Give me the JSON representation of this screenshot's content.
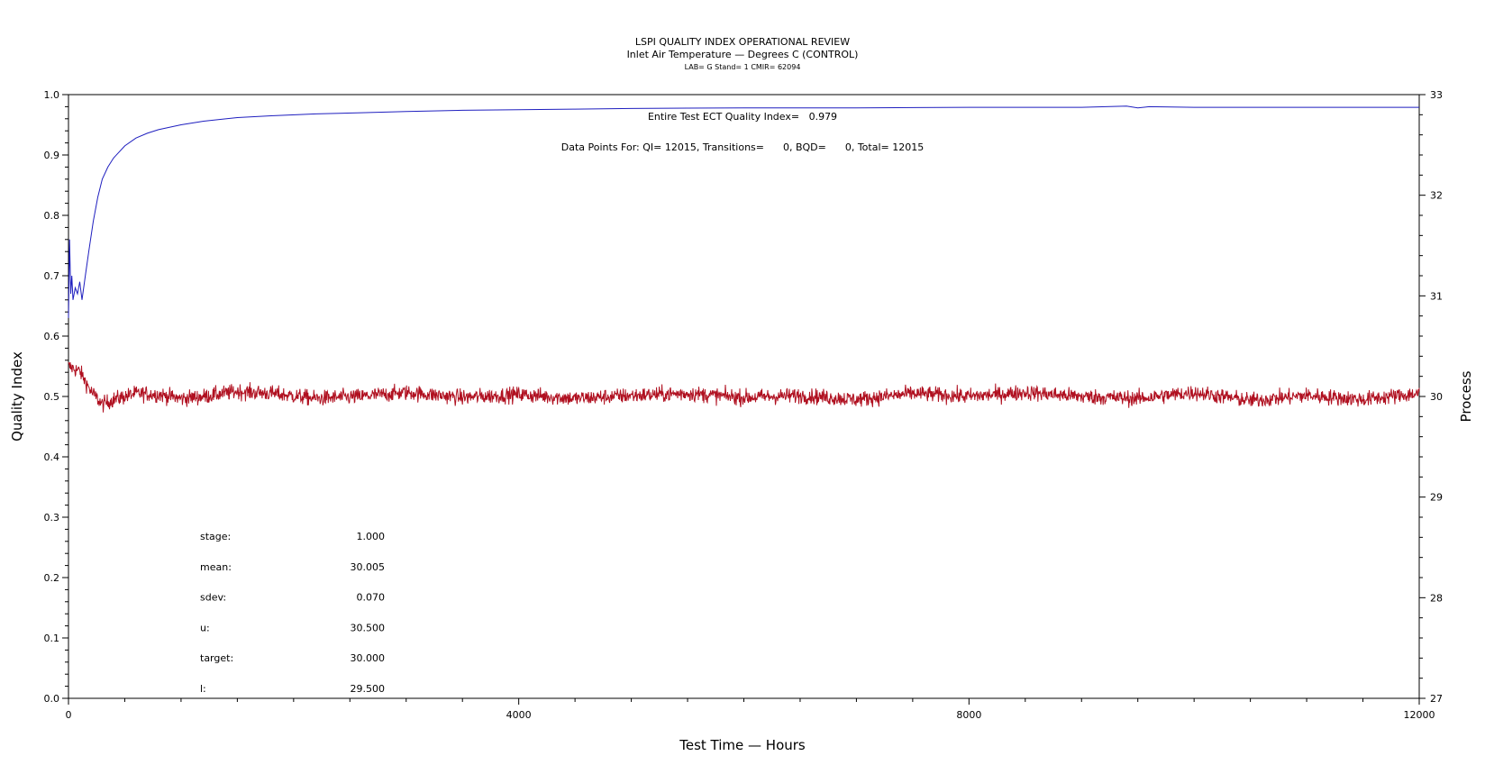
{
  "chart_data": {
    "type": "line",
    "title": "LSPI QUALITY INDEX OPERATIONAL REVIEW",
    "subtitle": "Inlet Air Temperature — Degrees C (CONTROL)",
    "subtitle2": "LAB= G Stand= 1 CMIR= 62094",
    "xlabel": "Test Time — Hours",
    "ylabel": "Quality Index",
    "y2label": "Process",
    "xlim": [
      0,
      12000
    ],
    "ylim": [
      0.0,
      1.0
    ],
    "y2lim": [
      27,
      33
    ],
    "x_ticks": [
      "0",
      "4000",
      "8000",
      "12000"
    ],
    "y_ticks": [
      "0.0",
      "0.1",
      "0.2",
      "0.3",
      "0.4",
      "0.5",
      "0.6",
      "0.7",
      "0.8",
      "0.9",
      "1.0"
    ],
    "y2_ticks": [
      "27",
      "28",
      "29",
      "30",
      "31",
      "32",
      "33"
    ],
    "annotations": {
      "qi_text": "Entire Test ECT Quality Index=   0.979",
      "points_text": "Data Points For: QI= 12015, Transitions=      0, BQD=      0, Total= 12015"
    },
    "stats": [
      {
        "label": "stage:",
        "value": "1.000"
      },
      {
        "label": "mean:",
        "value": "30.005"
      },
      {
        "label": "sdev:",
        "value": "0.070"
      },
      {
        "label": "u:",
        "value": "30.500"
      },
      {
        "label": "target:",
        "value": "30.000"
      },
      {
        "label": "l:",
        "value": "29.500"
      }
    ],
    "series": [
      {
        "axis": "left",
        "color": "#1f1fbf",
        "x": [
          0,
          10,
          20,
          30,
          40,
          60,
          80,
          100,
          120,
          150,
          180,
          220,
          260,
          300,
          350,
          400,
          500,
          600,
          700,
          800,
          1000,
          1200,
          1500,
          1800,
          2200,
          2600,
          3000,
          3500,
          4000,
          4500,
          5000,
          6000,
          7000,
          8000,
          9000,
          9400,
          9500,
          9600,
          10000,
          10500,
          11000,
          11500,
          12000
        ],
        "y": [
          0.63,
          0.76,
          0.67,
          0.7,
          0.66,
          0.68,
          0.67,
          0.69,
          0.66,
          0.7,
          0.74,
          0.79,
          0.83,
          0.86,
          0.88,
          0.895,
          0.915,
          0.928,
          0.936,
          0.942,
          0.95,
          0.956,
          0.962,
          0.965,
          0.968,
          0.97,
          0.972,
          0.974,
          0.975,
          0.976,
          0.977,
          0.978,
          0.978,
          0.979,
          0.979,
          0.981,
          0.978,
          0.98,
          0.979,
          0.979,
          0.979,
          0.979,
          0.979
        ]
      },
      {
        "axis": "right",
        "color": "#b01020",
        "x": [
          0,
          100,
          200,
          300,
          400,
          600,
          800,
          1000,
          1200,
          1500,
          1800,
          2200,
          2600,
          3000,
          3500,
          4000,
          4500,
          5000,
          5500,
          6000,
          6500,
          7000,
          7500,
          8000,
          8500,
          9000,
          9500,
          10000,
          10500,
          11000,
          11500,
          12000
        ],
        "y": [
          30.3,
          30.25,
          30.05,
          29.92,
          29.97,
          30.03,
          30.02,
          29.98,
          30.0,
          30.05,
          30.03,
          29.98,
          30.0,
          30.04,
          29.99,
          30.02,
          29.98,
          30.01,
          30.03,
          29.99,
          30.01,
          29.97,
          30.03,
          30.0,
          30.04,
          30.0,
          29.98,
          30.04,
          29.96,
          30.01,
          29.97,
          30.03
        ],
        "noise_sdev": 0.07
      }
    ]
  }
}
